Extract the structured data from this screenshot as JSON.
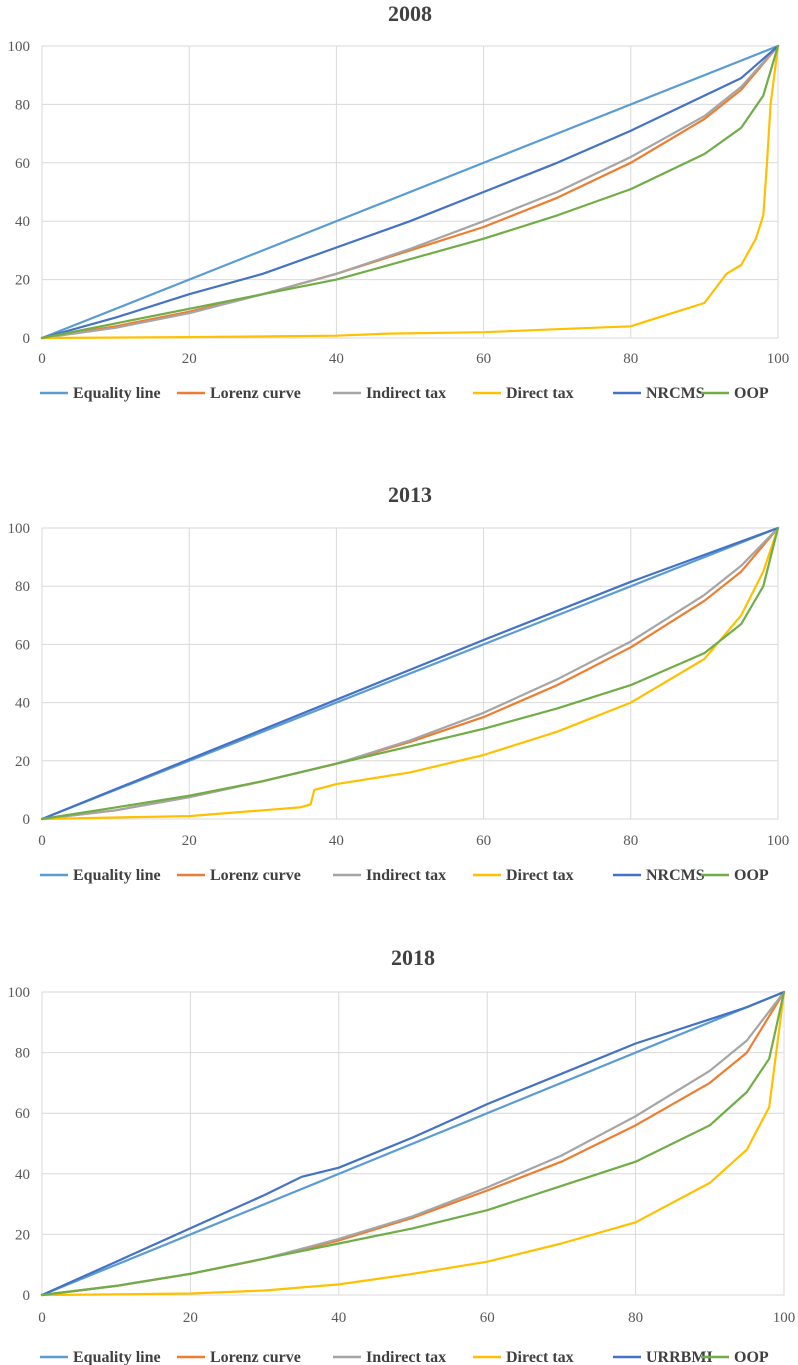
{
  "colors": {
    "equality": "#5B9BD5",
    "lorenz": "#ED7D31",
    "indirect": "#A5A5A5",
    "direct": "#FFC000",
    "scheme": "#4472C4",
    "oop": "#70AD47",
    "grid": "#d9d9d9"
  },
  "chart_data": [
    {
      "type": "line",
      "title": "2008",
      "xlim": [
        0,
        100
      ],
      "ylim": [
        0,
        100
      ],
      "xticks": [
        0,
        20,
        40,
        60,
        80,
        100
      ],
      "yticks": [
        0,
        20,
        40,
        60,
        80,
        100
      ],
      "grid": true,
      "legend_position": "bottom",
      "series": [
        {
          "name": "Equality line",
          "color_key": "equality",
          "x": [
            0,
            100
          ],
          "y": [
            0,
            100
          ]
        },
        {
          "name": "Lorenz curve",
          "color_key": "lorenz",
          "x": [
            0,
            10,
            20,
            30,
            40,
            50,
            60,
            70,
            80,
            90,
            95,
            100
          ],
          "y": [
            0,
            4,
            9,
            15,
            22,
            30,
            38,
            48,
            60,
            75,
            85,
            100
          ]
        },
        {
          "name": "Indirect tax",
          "color_key": "indirect",
          "x": [
            0,
            10,
            20,
            30,
            40,
            50,
            60,
            70,
            80,
            90,
            95,
            100
          ],
          "y": [
            0,
            3.5,
            8.5,
            15,
            22,
            30.5,
            40,
            50,
            62,
            76,
            86,
            100
          ]
        },
        {
          "name": "Direct tax",
          "color_key": "direct",
          "x": [
            0,
            20,
            40,
            47,
            60,
            70,
            80,
            85,
            90,
            93,
            95,
            97,
            98,
            98.5,
            99,
            100
          ],
          "y": [
            0,
            0.3,
            0.8,
            1.5,
            2,
            3,
            4,
            8,
            12,
            22,
            25,
            34,
            42,
            60,
            80,
            100
          ]
        },
        {
          "name": "NRCMS",
          "color_key": "scheme",
          "x": [
            0,
            10,
            20,
            30,
            40,
            50,
            60,
            70,
            80,
            90,
            95,
            100
          ],
          "y": [
            0,
            7,
            15,
            22,
            31,
            40,
            50,
            60,
            71,
            83,
            89,
            100
          ]
        },
        {
          "name": "OOP",
          "color_key": "oop",
          "x": [
            0,
            10,
            20,
            30,
            40,
            50,
            60,
            70,
            80,
            90,
            95,
            98,
            100
          ],
          "y": [
            0,
            5,
            10,
            15,
            20,
            27,
            34,
            42,
            51,
            63,
            72,
            83,
            100
          ]
        }
      ]
    },
    {
      "type": "line",
      "title": "2013",
      "xlim": [
        0,
        100
      ],
      "ylim": [
        0,
        100
      ],
      "xticks": [
        0,
        20,
        40,
        60,
        80,
        100
      ],
      "yticks": [
        0,
        20,
        40,
        60,
        80,
        100
      ],
      "grid": true,
      "legend_position": "bottom",
      "series": [
        {
          "name": "Equality line",
          "color_key": "equality",
          "x": [
            0,
            100
          ],
          "y": [
            0,
            100
          ]
        },
        {
          "name": "Lorenz curve",
          "color_key": "lorenz",
          "x": [
            0,
            10,
            20,
            30,
            40,
            50,
            60,
            70,
            80,
            90,
            95,
            100
          ],
          "y": [
            0,
            3,
            7.5,
            13,
            19,
            26.5,
            35,
            46,
            59,
            75,
            85,
            100
          ]
        },
        {
          "name": "Indirect tax",
          "color_key": "indirect",
          "x": [
            0,
            10,
            20,
            30,
            40,
            50,
            60,
            70,
            80,
            90,
            95,
            100
          ],
          "y": [
            0,
            3,
            7.5,
            13,
            19,
            27,
            36.5,
            48,
            61,
            77,
            87,
            100
          ]
        },
        {
          "name": "Direct tax",
          "color_key": "direct",
          "x": [
            0,
            10,
            20,
            30,
            35,
            36.5,
            37,
            40,
            50,
            60,
            70,
            80,
            90,
            95,
            98,
            100
          ],
          "y": [
            0,
            0.5,
            1,
            3,
            4,
            5,
            10,
            12,
            16,
            22,
            30,
            40,
            55,
            70,
            85,
            100
          ]
        },
        {
          "name": "NRCMS",
          "color_key": "scheme",
          "x": [
            0,
            20,
            40,
            60,
            80,
            100
          ],
          "y": [
            0,
            20.5,
            41,
            61.5,
            81.5,
            100
          ]
        },
        {
          "name": "OOP",
          "color_key": "oop",
          "x": [
            0,
            10,
            20,
            30,
            40,
            50,
            60,
            70,
            80,
            90,
            95,
            98,
            100
          ],
          "y": [
            0,
            4,
            8,
            13,
            19,
            25,
            31,
            38,
            46,
            57,
            67,
            80,
            100
          ]
        }
      ]
    },
    {
      "type": "line",
      "title": "2018",
      "xlim": [
        0,
        100
      ],
      "ylim": [
        0,
        100
      ],
      "xticks": [
        0,
        20,
        40,
        60,
        80,
        100
      ],
      "yticks": [
        0,
        20,
        40,
        60,
        80,
        100
      ],
      "grid": true,
      "legend_position": "bottom",
      "series": [
        {
          "name": "Equality line",
          "color_key": "equality",
          "x": [
            0,
            100
          ],
          "y": [
            0,
            100
          ]
        },
        {
          "name": "Lorenz curve",
          "color_key": "lorenz",
          "x": [
            0,
            10,
            20,
            30,
            40,
            50,
            60,
            70,
            80,
            90,
            95,
            100
          ],
          "y": [
            0,
            3,
            7,
            12,
            18,
            25.5,
            34.5,
            44,
            56,
            70,
            80,
            100
          ]
        },
        {
          "name": "Indirect tax",
          "color_key": "indirect",
          "x": [
            0,
            10,
            20,
            30,
            40,
            50,
            60,
            70,
            80,
            90,
            95,
            100
          ],
          "y": [
            0,
            3,
            7,
            12,
            18.5,
            26,
            35.5,
            46,
            59,
            74,
            84,
            100
          ]
        },
        {
          "name": "Direct tax",
          "color_key": "direct",
          "x": [
            0,
            10,
            20,
            30,
            40,
            50,
            60,
            70,
            80,
            90,
            95,
            98,
            100
          ],
          "y": [
            0,
            0.2,
            0.5,
            1.5,
            3.5,
            7,
            11,
            17,
            24,
            37,
            48,
            62,
            100
          ]
        },
        {
          "name": "URRBMI",
          "color_key": "scheme",
          "x": [
            0,
            10,
            20,
            30,
            35,
            40,
            50,
            60,
            70,
            80,
            90,
            95,
            100
          ],
          "y": [
            0,
            11,
            22,
            33,
            39,
            42,
            52,
            63,
            73,
            83,
            91,
            95,
            100
          ]
        },
        {
          "name": "OOP",
          "color_key": "oop",
          "x": [
            0,
            10,
            20,
            30,
            40,
            50,
            60,
            70,
            80,
            90,
            95,
            98,
            100
          ],
          "y": [
            0,
            3,
            7,
            12,
            17,
            22,
            28,
            36,
            44,
            56,
            67,
            78,
            100
          ]
        }
      ]
    }
  ]
}
